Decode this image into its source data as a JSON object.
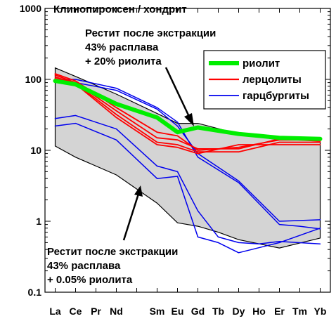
{
  "chart_data": {
    "type": "line",
    "title": "Клинопироксен / хондрит",
    "y_scale": "log",
    "ylim": [
      0.1,
      1000
    ],
    "y_ticks": [
      {
        "value": 0.1,
        "label": "0.1"
      },
      {
        "value": 1,
        "label": "1"
      },
      {
        "value": 10,
        "label": "10"
      },
      {
        "value": 100,
        "label": "100"
      },
      {
        "value": 1000,
        "label": "1000"
      }
    ],
    "categories": [
      "La",
      "Ce",
      "Pr",
      "Nd",
      "Sm",
      "Eu",
      "Gd",
      "Tb",
      "Dy",
      "Ho",
      "Er",
      "Tm",
      "Yb"
    ],
    "category_positions": [
      0,
      1,
      2,
      3,
      5,
      6,
      7,
      8,
      9,
      10,
      11,
      12,
      13
    ],
    "x_range": [
      -0.5,
      13.5
    ],
    "field": {
      "upper": [
        [
          0,
          145
        ],
        [
          1,
          110
        ],
        [
          3,
          62
        ],
        [
          5,
          33
        ],
        [
          6,
          24
        ],
        [
          7,
          24
        ],
        [
          9,
          17
        ],
        [
          11,
          14
        ],
        [
          13,
          14
        ]
      ],
      "lower": [
        [
          0,
          11.5
        ],
        [
          1,
          8
        ],
        [
          3,
          4.5
        ],
        [
          5,
          1.8
        ],
        [
          6,
          0.95
        ],
        [
          7,
          0.85
        ],
        [
          8,
          0.7
        ],
        [
          9,
          0.55
        ],
        [
          11,
          0.42
        ],
        [
          13,
          0.58
        ]
      ],
      "color": "#d4d4d4"
    },
    "series": [
      {
        "name": "риолит",
        "color": "#00ee00",
        "width": 6,
        "points": [
          [
            0,
            95
          ],
          [
            1,
            85
          ],
          [
            3,
            45
          ],
          [
            5,
            29
          ],
          [
            6,
            18
          ],
          [
            7,
            21
          ],
          [
            9,
            17
          ],
          [
            10,
            16
          ],
          [
            11,
            15
          ],
          [
            13,
            14.5
          ]
        ]
      },
      {
        "name": "лерцолиты",
        "color": "#ff0000",
        "width": 1.8,
        "lines": [
          [
            [
              0,
              120
            ],
            [
              1,
              95
            ],
            [
              3,
              40
            ],
            [
              5,
              18
            ],
            [
              6,
              16
            ],
            [
              7,
              10
            ],
            [
              9,
              11
            ],
            [
              11,
              14
            ],
            [
              13,
              14
            ]
          ],
          [
            [
              0,
              115
            ],
            [
              1,
              90
            ],
            [
              3,
              36
            ],
            [
              5,
              15
            ],
            [
              6,
              14
            ],
            [
              7,
              10.5
            ],
            [
              9,
              10.5
            ],
            [
              11,
              14.5
            ],
            [
              13,
              13.5
            ]
          ],
          [
            [
              0,
              108
            ],
            [
              1,
              88
            ],
            [
              3,
              32
            ],
            [
              5,
              13
            ],
            [
              6,
              12
            ],
            [
              7,
              9.5
            ],
            [
              9,
              9.5
            ],
            [
              11,
              13
            ],
            [
              13,
              13
            ]
          ],
          [
            [
              0,
              103
            ],
            [
              1,
              86
            ],
            [
              3,
              29
            ],
            [
              5,
              12
            ],
            [
              6,
              11
            ],
            [
              7,
              9
            ],
            [
              9,
              12
            ],
            [
              11,
              12
            ],
            [
              13,
              12
            ]
          ]
        ]
      },
      {
        "name": "гарцбургиты",
        "color": "#0000ee",
        "width": 1.5,
        "lines": [
          [
            [
              0,
              100
            ],
            [
              1,
              100
            ],
            [
              3,
              75
            ],
            [
              5,
              40
            ],
            [
              6,
              25
            ],
            [
              7,
              8
            ],
            [
              9,
              3.5
            ],
            [
              11,
              0.9
            ],
            [
              12,
              0.85
            ],
            [
              13,
              0.78
            ]
          ],
          [
            [
              0,
              100
            ],
            [
              1,
              90
            ],
            [
              3,
              70
            ],
            [
              5,
              38
            ],
            [
              6,
              22
            ],
            [
              7,
              9
            ],
            [
              9,
              3.7
            ],
            [
              11,
              1
            ],
            [
              13,
              1.05
            ]
          ],
          [
            [
              0,
              28
            ],
            [
              1,
              31
            ],
            [
              3,
              20
            ],
            [
              5,
              6
            ],
            [
              6,
              5
            ],
            [
              7,
              1.4
            ],
            [
              8,
              0.6
            ],
            [
              9,
              0.5
            ],
            [
              10,
              0.48
            ],
            [
              11,
              0.52
            ],
            [
              13,
              0.48
            ]
          ],
          [
            [
              0,
              22
            ],
            [
              1,
              24
            ],
            [
              3,
              14
            ],
            [
              5,
              4
            ],
            [
              6,
              4.3
            ],
            [
              7,
              0.6
            ],
            [
              8,
              0.5
            ],
            [
              9,
              0.36
            ],
            [
              11,
              0.5
            ],
            [
              13,
              0.8
            ]
          ]
        ]
      }
    ],
    "legend": {
      "placement": "top-right",
      "entries": [
        "риолит",
        "лерцолиты",
        "гарцбургиты"
      ]
    },
    "annotations": [
      {
        "lines": [
          "Рестит после экстракции",
          "43% расплава",
          "+ 20% риолита"
        ],
        "placement": "top-center"
      },
      {
        "lines": [
          "Рестит после экстракции",
          "43% расплава",
          "+ 0.05% риолита"
        ],
        "placement": "bottom-left"
      }
    ],
    "grid": false
  }
}
